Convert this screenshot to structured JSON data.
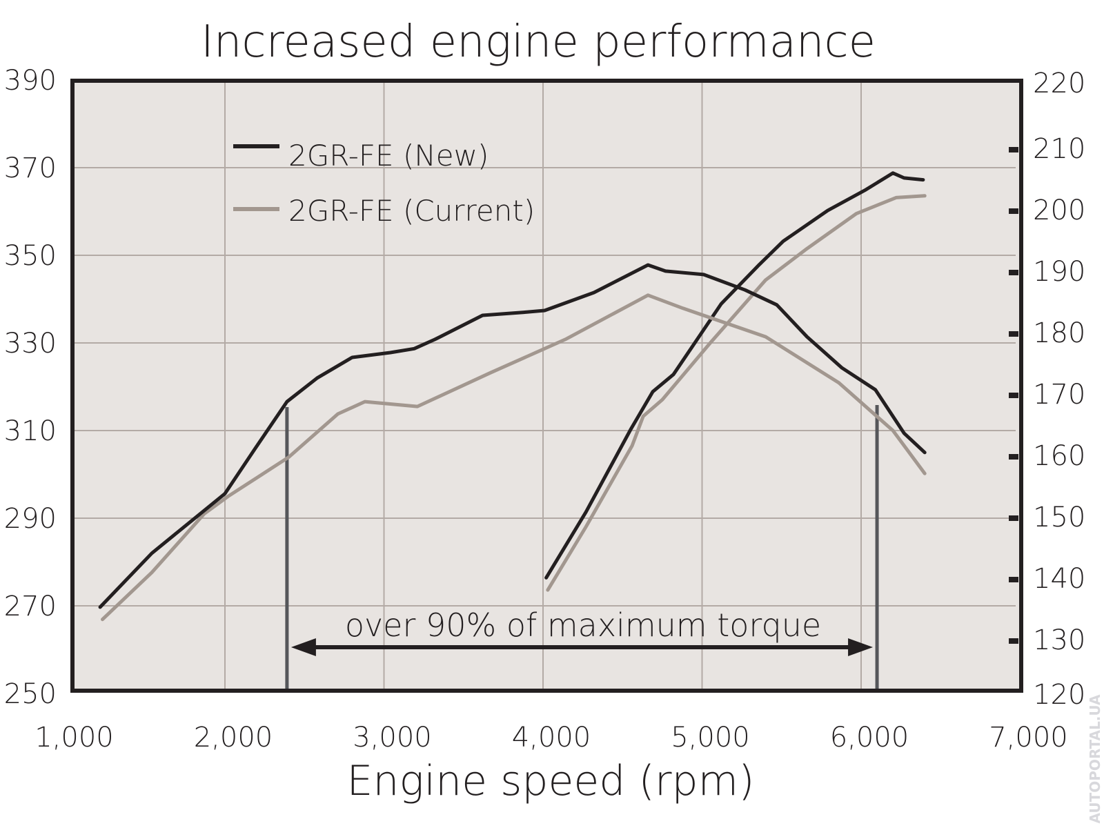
{
  "chart_data": {
    "type": "line",
    "title": "Increased engine performance",
    "xlabel": "Engine speed (rpm)",
    "ylabel": "",
    "ylabel_right": "",
    "xlim": [
      1000,
      7000
    ],
    "ylim": [
      250,
      390
    ],
    "ylim_right": [
      120,
      220
    ],
    "x_ticks": [
      "1,000",
      "2,000",
      "3,000",
      "4,000",
      "5,000",
      "6,000",
      "7,000"
    ],
    "y_ticks": [
      "250",
      "270",
      "290",
      "310",
      "330",
      "350",
      "370",
      "390"
    ],
    "y_ticks_right": [
      "120",
      "130",
      "140",
      "150",
      "160",
      "170",
      "180",
      "190",
      "200",
      "210",
      "220"
    ],
    "grid": true,
    "legend": {
      "placement": "top-left",
      "entries": [
        "2GR-FE (New)",
        "2GR-FE (Current)"
      ]
    },
    "colors": {
      "new": "#231f20",
      "current": "#a2978f",
      "plot_bg": "#e8e4e1",
      "grid": "#b3aaa5",
      "marker": "#55565a"
    },
    "series": [
      {
        "name": "2GR-FE (New)",
        "quantity": "torque",
        "axis": "left",
        "color": "#231f20",
        "x": [
          1215,
          1540,
          2000,
          2190,
          2390,
          2580,
          2800,
          3040,
          3190,
          3320,
          3620,
          3880,
          4010,
          4320,
          4660,
          4770,
          5010,
          5270,
          5470,
          5660,
          5880,
          6090,
          6270,
          6400
        ],
        "y": [
          269.7,
          282,
          295.6,
          305.9,
          316.6,
          322,
          326.7,
          327.8,
          328.7,
          330.8,
          336.3,
          337,
          337.4,
          341.5,
          347.8,
          346.4,
          345.6,
          342.1,
          338.7,
          331.4,
          324.3,
          319.3,
          309.4,
          305
        ]
      },
      {
        "name": "2GR-FE (Current)",
        "quantity": "torque",
        "axis": "left",
        "color": "#a2978f",
        "x": [
          1230,
          1540,
          1870,
          2020,
          2400,
          2710,
          2880,
          3210,
          3670,
          4140,
          4660,
          4880,
          5400,
          5860,
          6200,
          6400
        ],
        "y": [
          266.9,
          277.6,
          291,
          295,
          303.9,
          313.8,
          316.6,
          315.5,
          323.2,
          330.8,
          340.9,
          337.9,
          331.4,
          320.9,
          310,
          300.2
        ]
      },
      {
        "name": "2GR-FE (New)",
        "quantity": "power",
        "axis": "right",
        "color": "#231f20",
        "x": [
          4020,
          4270,
          4550,
          4690,
          4820,
          5120,
          5360,
          5510,
          5790,
          6030,
          6200,
          6270,
          6390
        ],
        "y": [
          140.3,
          151,
          164.4,
          170.6,
          173.4,
          184.9,
          191.3,
          195.1,
          200.1,
          203.5,
          206.2,
          205.4,
          205.1
        ]
      },
      {
        "name": "2GR-FE (Current)",
        "quantity": "power",
        "axis": "right",
        "color": "#a2978f",
        "x": [
          4030,
          4270,
          4560,
          4630,
          4750,
          5050,
          5400,
          5660,
          5970,
          6220,
          6400
        ],
        "y": [
          138.3,
          148.6,
          161.8,
          166.6,
          169.3,
          178.5,
          188.8,
          193.9,
          199.6,
          202.2,
          202.5
        ]
      }
    ],
    "annotation": {
      "text": "over 90% of maximum torque",
      "range_rpm": [
        2390,
        6100
      ]
    }
  },
  "watermark": "AUTOPORTAL.UA"
}
